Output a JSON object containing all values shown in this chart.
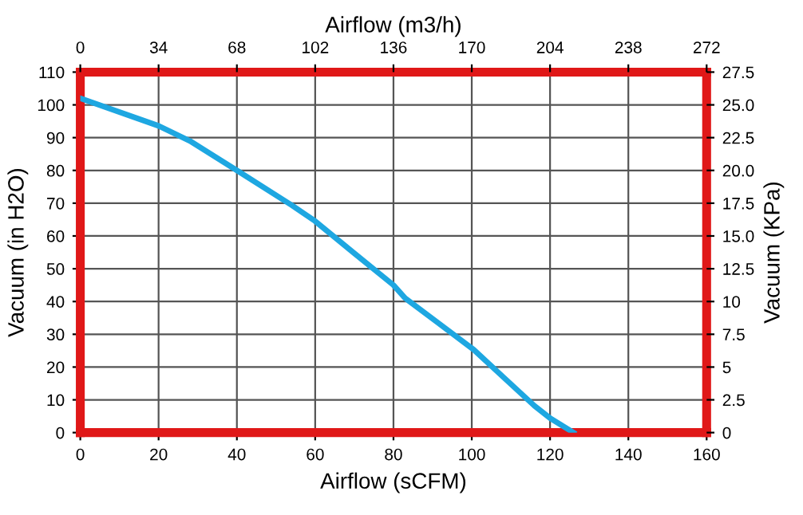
{
  "chart_data": {
    "type": "line",
    "xlabel": "Airflow (sCFM)",
    "x2label": "Airflow (m3/h)",
    "ylabel": "Vacuum (in H2O)",
    "y2label": "Vacuum (KPa)",
    "series": [
      {
        "color": "#1ea7e1",
        "x": [
          0,
          20,
          28,
          40,
          54,
          60,
          70,
          80,
          83,
          91.4,
          100.5,
          108,
          116,
          120,
          126
        ],
        "values": [
          102,
          93.6,
          89,
          80,
          69.4,
          64.5,
          54.7,
          45,
          41,
          33.5,
          25.3,
          17,
          8.2,
          4.4,
          0
        ]
      }
    ],
    "xlim": [
      0,
      160
    ],
    "xticks": [
      0,
      20,
      40,
      60,
      80,
      100,
      120,
      140,
      160
    ],
    "x2lim": [
      0,
      272
    ],
    "x2ticks": [
      0,
      34,
      68,
      102,
      136,
      170,
      204,
      238,
      272
    ],
    "ylim": [
      0,
      110
    ],
    "yticks": [
      0,
      10,
      20,
      30,
      40,
      50,
      60,
      70,
      80,
      90,
      100,
      110
    ],
    "y2lim": [
      0,
      27.5
    ],
    "y2ticks": [
      0,
      {
        "value": 2.5,
        "label": "2.5"
      },
      5,
      {
        "value": 7.5,
        "label": "7.5"
      },
      10,
      {
        "value": 12.5,
        "label": "12.5"
      },
      {
        "value": 15,
        "label": "15.0"
      },
      {
        "value": 17.5,
        "label": "17.5"
      },
      {
        "value": 20,
        "label": "20.0"
      },
      {
        "value": 22.5,
        "label": "22.5"
      },
      {
        "value": 25,
        "label": "25.0"
      },
      {
        "value": 27.5,
        "label": "27.5"
      }
    ],
    "grid": true,
    "line_style": "solid",
    "marker": "none",
    "legend": false
  }
}
